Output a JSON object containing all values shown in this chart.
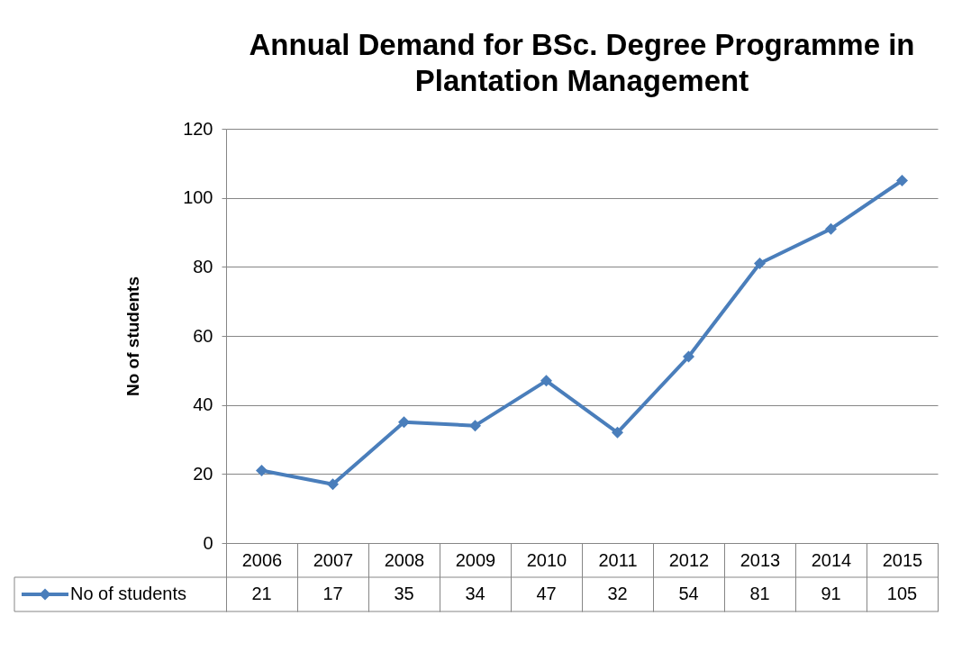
{
  "chart_data": {
    "type": "line",
    "title": "Annual Demand for BSc. Degree Programme in Plantation Management",
    "ylabel": "No of students",
    "categories": [
      "2006",
      "2007",
      "2008",
      "2009",
      "2010",
      "2011",
      "2012",
      "2013",
      "2014",
      "2015"
    ],
    "series": [
      {
        "name": "No of students",
        "color": "#4a7ebb",
        "values": [
          21,
          17,
          35,
          34,
          47,
          32,
          54,
          81,
          91,
          105
        ]
      }
    ],
    "ylim": [
      0,
      120
    ],
    "yticks": [
      0,
      20,
      40,
      60,
      80,
      100,
      120
    ],
    "grid": "y",
    "legend": "bottom",
    "marker": "diamond",
    "line_style": "solid",
    "data_labels": true
  }
}
